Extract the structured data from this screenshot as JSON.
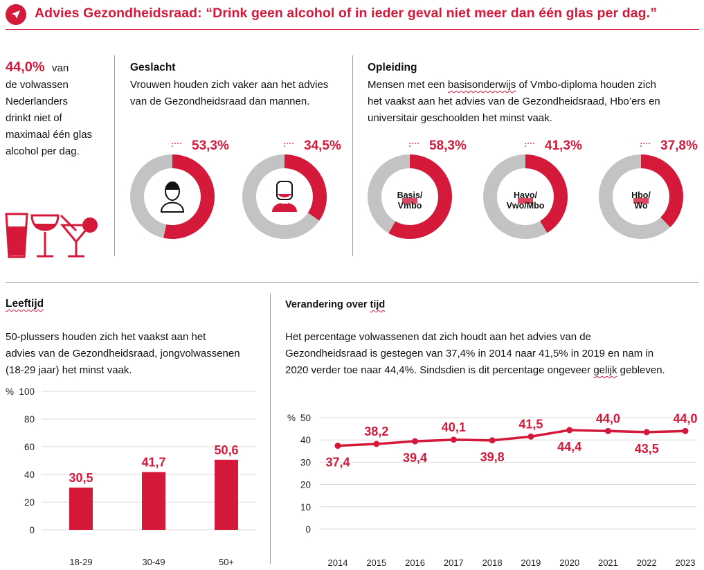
{
  "header": {
    "title": "Advies Gezondheidsraad: “Drink geen alcohol of in ieder geval niet meer dan één glas per dag.”",
    "accent_color": "#d4193a",
    "icon": "navigation-arrow-icon"
  },
  "intro": {
    "percentage": "44,0%",
    "text_line1": "van",
    "text_rest": [
      "de volwassen",
      "Nederlanders",
      "drinkt niet of",
      "maximaal één glas",
      "alcohol per dag."
    ]
  },
  "geslacht": {
    "heading": "Geslacht",
    "text_lines": [
      "Vrouwen houden zich vaker aan het advies",
      "van de Gezondheidsraad dan mannen."
    ]
  },
  "opleiding": {
    "heading": "Opleiding",
    "text_line1_pre": "Mensen met een ",
    "text_line1_marked": "basisonderwijs",
    "text_line1_post": " of Vmbo-diploma houden zich",
    "text_lines": [
      "het vaakst aan het advies van de Gezondheidsraad, Hbo’ers en",
      "universitair geschoolden het minst vaak."
    ]
  },
  "leeftijd": {
    "heading": "Leeftijd",
    "text_lines": [
      "50-plussers houden zich het vaakst aan het",
      "advies van de Gezondheidsraad, jongvolwassenen",
      "(18-29 jaar) het minst vaak."
    ]
  },
  "verandering": {
    "heading_pre": "Verandering over ",
    "heading_marked": "tijd",
    "text_line1": "Het percentage volwassenen dat zich houdt aan het advies van de",
    "text_line2": "Gezondheidsraad is gestegen van 37,4% in 2014 naar 41,5% in 2019 en nam in",
    "text_line3_pre": "2020 verder toe naar 44,4%. Sindsdien is dit percentage ongeveer ",
    "text_line3_marked": "gelijk",
    "text_line3_post": " gebleven."
  },
  "chart_data": [
    {
      "type": "donut",
      "title": "Geslacht",
      "series": [
        {
          "name": "Vrouwen",
          "value": 53.3,
          "label": "53,3%",
          "icon": "woman-icon"
        },
        {
          "name": "Mannen",
          "value": 34.5,
          "label": "34,5%",
          "icon": "man-icon"
        }
      ]
    },
    {
      "type": "donut",
      "title": "Opleiding",
      "series": [
        {
          "name": "Basis/ Vmbo",
          "label_lines": [
            "Basis/",
            "Vmbo"
          ],
          "value": 58.3,
          "label": "58,3%"
        },
        {
          "name": "Havo/ Vwo/Mbo",
          "label_lines": [
            "Havo/",
            "Vwo/Mbo"
          ],
          "value": 41.3,
          "label": "41,3%"
        },
        {
          "name": "Hbo/ Wo",
          "label_lines": [
            "Hbo/",
            "Wo"
          ],
          "value": 37.8,
          "label": "37,8%"
        }
      ]
    },
    {
      "type": "bar",
      "title": "Leeftijd",
      "categories": [
        "18-29",
        "30-49",
        "50+"
      ],
      "values": [
        30.5,
        41.7,
        50.6
      ],
      "value_labels": [
        "30,5",
        "41,7",
        "50,6"
      ],
      "ylabel": "%",
      "ylim": [
        0,
        100
      ],
      "yticks": [
        "0",
        "20",
        "40",
        "60",
        "80",
        "100"
      ]
    },
    {
      "type": "line",
      "title": "Verandering over tijd",
      "x": [
        "2014",
        "2015",
        "2016",
        "2017",
        "2018",
        "2019",
        "2020",
        "2021",
        "2022",
        "2023"
      ],
      "values": [
        37.4,
        38.2,
        39.4,
        40.1,
        39.8,
        41.5,
        44.4,
        44.0,
        43.5,
        44.0
      ],
      "value_labels": [
        "37,4",
        "38,2",
        "39,4",
        "40,1",
        "39,8",
        "41,5",
        "44,4",
        "44,0",
        "43,5",
        "44,0"
      ],
      "label_pos": [
        "below",
        "above",
        "below",
        "above",
        "below",
        "above",
        "below",
        "above",
        "below",
        "above"
      ],
      "ylabel": "%",
      "ylim": [
        0,
        50
      ],
      "yticks": [
        "0",
        "10",
        "20",
        "30",
        "40",
        "50"
      ]
    }
  ],
  "colors": {
    "accent": "#d4193a",
    "ring_gray": "#c3c3c3",
    "grid": "#d9d9d9"
  }
}
